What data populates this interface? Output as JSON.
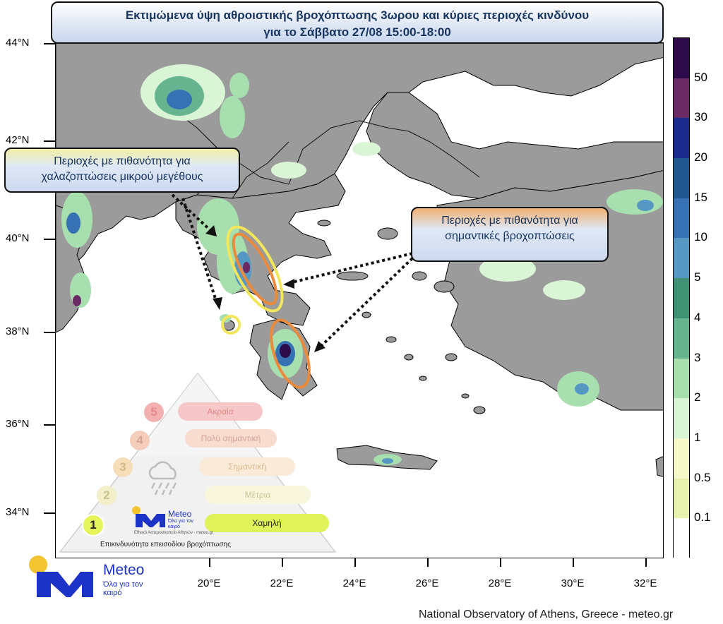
{
  "title": {
    "line1": "Εκτιμώμενα ύψη αθροιστικής βροχόπτωσης 3ωρου και κύριες περιοχές κινδύνου",
    "line2": "για το Σάββατο 27/08 15:00-18:00"
  },
  "callouts": {
    "hail_line1": "Περιοχές με πιθανότητα για",
    "hail_line2": "χαλαζοπτώσεις μικρού μεγέθους",
    "rain_line1": "Περιοχές με πιθανότητα για",
    "rain_line2": "σημαντικές βροχοπτώσεις"
  },
  "axes": {
    "lat_labels": [
      "44°N",
      "42°N",
      "40°N",
      "38°N",
      "36°N",
      "34°N"
    ],
    "lon_labels": [
      "20°E",
      "22°E",
      "24°E",
      "26°E",
      "28°E",
      "30°E",
      "32°E"
    ]
  },
  "colorbar": {
    "labels": [
      "50",
      "30",
      "20",
      "15",
      "10",
      "5",
      "4",
      "3",
      "2",
      "1",
      "0.5",
      "0.1"
    ],
    "colors": [
      "#2d0a4a",
      "#6a2a63",
      "#1c2b8e",
      "#22568e",
      "#3571b3",
      "#5598c4",
      "#3f9274",
      "#67b590",
      "#a8dfae",
      "#daf5d5",
      "#f5f8c8",
      "#e8f2b0",
      "#ffffff"
    ]
  },
  "risk_scale": {
    "levels": [
      {
        "num": "5",
        "label": "Ακραία"
      },
      {
        "num": "4",
        "label": "Πολύ σημαντική"
      },
      {
        "num": "3",
        "label": "Σημαντική"
      },
      {
        "num": "2",
        "label": "Μέτρια"
      },
      {
        "num": "1",
        "label": "Χαμηλή"
      }
    ],
    "caption": "Επικινδυνότητα επεισοδίου βροχόπτωσης",
    "logo_name": "Meteo",
    "logo_tagline": "Όλα για τον καιρό",
    "observatory": "Εθνικό Αστεροσκοπείο Αθηνών - meteo.gr"
  },
  "logo": {
    "name": "Meteo",
    "tagline": "Όλα για τον καιρό",
    "dot_color": "#f4c430",
    "brand_color": "#1d33c8"
  },
  "credit": "National Observatory of Athens, Greece - meteo.gr",
  "colors": {
    "land": "#9b9b9b",
    "sea": "#ffffff",
    "hail_outline": "#f2e65a",
    "rain_outline": "#e98a3d"
  }
}
